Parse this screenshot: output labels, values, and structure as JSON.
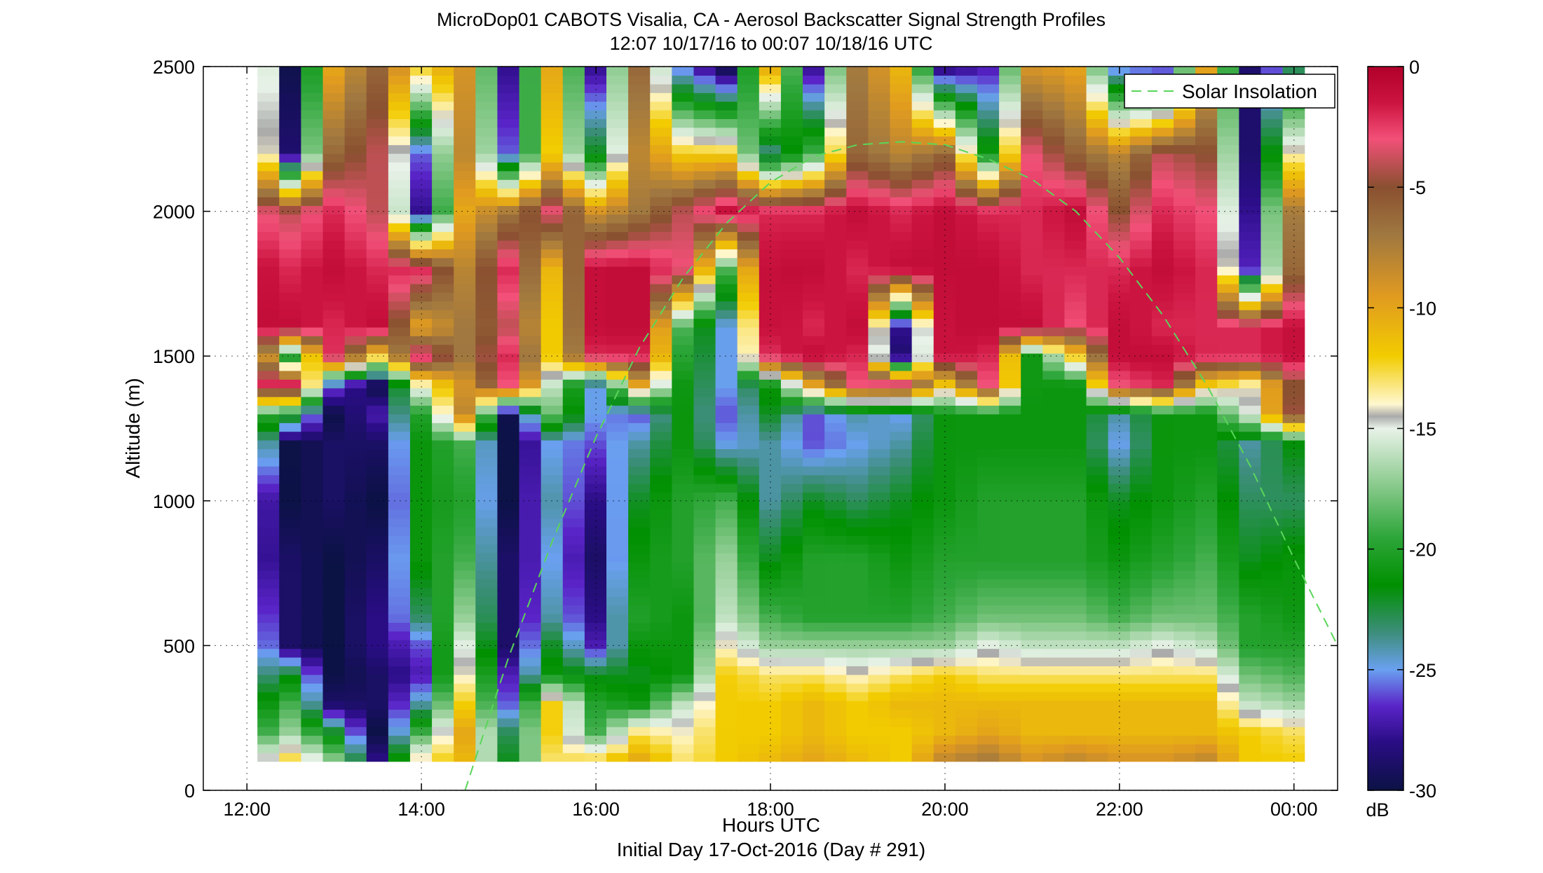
{
  "chart_data": {
    "type": "heatmap",
    "title": "MicroDop01 CABOTS Visalia, CA - Aerosol Backscatter Signal Strength Profiles",
    "subtitle": "12:07 10/17/16 to 00:07 10/18/16  UTC",
    "xlabel": "Hours UTC",
    "ylabel": "Altitude (m)",
    "footer": "Initial Day 17-Oct-2016 (Day # 291)",
    "x_ticks": [
      "12:00",
      "14:00",
      "16:00",
      "18:00",
      "20:00",
      "22:00",
      "00:00"
    ],
    "x_tick_hours": [
      12,
      14,
      16,
      18,
      20,
      22,
      24
    ],
    "xlim_hours": [
      11.5,
      24.5
    ],
    "y_ticks": [
      "0",
      "500",
      "1000",
      "1500",
      "2000",
      "2500"
    ],
    "y_tick_values": [
      0,
      500,
      1000,
      1500,
      2000,
      2500
    ],
    "ylim": [
      0,
      2500
    ],
    "data_x_range_hours": [
      12.12,
      24.12
    ],
    "data_y_range": [
      100,
      2500
    ],
    "colorbar": {
      "ticks": [
        "0",
        "-5",
        "-10",
        "-15",
        "-20",
        "-25",
        "-30"
      ],
      "tick_values": [
        0,
        -5,
        -10,
        -15,
        -20,
        -25,
        -30
      ],
      "range": [
        -30,
        0
      ],
      "unit": "dB",
      "colormap_stops": [
        [
          -30,
          "#0b1244"
        ],
        [
          -28,
          "#2a0d85"
        ],
        [
          -26.5,
          "#5a24c8"
        ],
        [
          -25,
          "#6aa0f0"
        ],
        [
          -23.5,
          "#3e8e7e"
        ],
        [
          -21.5,
          "#009000"
        ],
        [
          -19.5,
          "#2ea63a"
        ],
        [
          -17,
          "#98d09a"
        ],
        [
          -15,
          "#e8f2e8"
        ],
        [
          -14.5,
          "#aaaaaa"
        ],
        [
          -14,
          "#fff7d0"
        ],
        [
          -12,
          "#f2cc00"
        ],
        [
          -9.5,
          "#e09a20"
        ],
        [
          -7,
          "#a07840"
        ],
        [
          -5,
          "#8a5030"
        ],
        [
          -3,
          "#f25078"
        ],
        [
          -1.5,
          "#cc1440"
        ],
        [
          0,
          "#b0002a"
        ]
      ]
    },
    "grid_altitude_m": [
      2500,
      2200,
      2000,
      1800,
      1600,
      1500,
      1400,
      1300,
      1200,
      1000,
      800,
      600,
      500,
      400,
      300,
      200,
      100
    ],
    "grid_hours_utc": [
      12.12,
      12.5,
      13,
      13.5,
      14,
      14.5,
      15,
      15.5,
      16,
      16.5,
      17,
      17.5,
      18,
      18.5,
      19,
      19.5,
      20,
      20.5,
      21,
      21.5,
      22,
      22.5,
      23,
      23.5,
      24.12
    ],
    "values_db": [
      [
        -8,
        -30,
        -10,
        -6,
        -12,
        -9,
        -28,
        -10,
        -28,
        -6,
        -26,
        -30,
        -10,
        -28,
        -7,
        -11,
        -29,
        -27,
        -9,
        -10,
        -26,
        -27,
        -10,
        -29,
        -22
      ],
      [
        -7,
        -29,
        -6,
        -4,
        -26,
        -8,
        -26,
        -12,
        -22,
        -8,
        -12,
        -12,
        -24,
        -19,
        -6,
        -8,
        -6,
        -21,
        -3,
        -6,
        -8,
        -4,
        -5,
        -29,
        -10
      ],
      [
        -3,
        -4,
        -2,
        -4,
        -28,
        -10,
        -7,
        -3,
        -9,
        -7,
        -4,
        -1,
        -2,
        -2,
        -1,
        -2,
        -1,
        -2,
        -2,
        -1,
        -5,
        -2,
        -3,
        -28,
        -2
      ],
      [
        -1,
        -2,
        -1,
        -2,
        -2,
        -8,
        -2,
        -11,
        -1,
        -1,
        -3,
        -19,
        -1,
        -1,
        -2,
        -1,
        -1,
        -1,
        -2,
        -2,
        -2,
        -1,
        -2,
        -27,
        -1
      ],
      [
        -1,
        -1,
        -2,
        -1,
        -10,
        -7,
        -4,
        -12,
        -1,
        -1,
        -19,
        -25,
        -1,
        -2,
        -1,
        -28,
        -1,
        -1,
        -1,
        -3,
        -1,
        -2,
        -2,
        -2,
        -1
      ],
      [
        -3,
        -21,
        -2,
        -12,
        -2,
        -7,
        -2,
        -12,
        -2,
        -2,
        -20,
        -25,
        -2,
        -1,
        -2,
        -29,
        -1,
        -2,
        -21,
        -12,
        -1,
        -1,
        -2,
        -2,
        -1
      ],
      [
        -2,
        -1,
        -26,
        -30,
        -14,
        -9,
        -3,
        -16,
        -25,
        -10,
        -21,
        -25,
        -21,
        -10,
        -3,
        -2,
        -12,
        -3,
        -21,
        -21,
        -3,
        -2,
        -12,
        -14,
        -3
      ],
      [
        -19,
        -21,
        -30,
        -27,
        -20,
        -8,
        -30,
        -18,
        -25,
        -26,
        -21,
        -26,
        -22,
        -26,
        -24,
        -25,
        -21,
        -21,
        -21,
        -21,
        -24,
        -21,
        -21,
        -15,
        -2
      ],
      [
        -21,
        -30,
        -29,
        -29,
        -21,
        -19,
        -30,
        -25,
        -26,
        -24,
        -21,
        -25,
        -24,
        -26,
        -25,
        -24,
        -21,
        -21,
        -21,
        -21,
        -25,
        -21,
        -21,
        -24,
        -21
      ],
      [
        -26,
        -30,
        -29,
        -30,
        -21,
        -20,
        -30,
        -24,
        -28,
        -22,
        -20,
        -19,
        -24,
        -22,
        -23,
        -22,
        -21,
        -20,
        -20,
        -20,
        -22,
        -21,
        -20,
        -23,
        -23
      ],
      [
        -27,
        -29,
        -30,
        -29,
        -21,
        -19,
        -29,
        -25,
        -29,
        -21,
        -20,
        -17,
        -22,
        -20,
        -20,
        -21,
        -20,
        -20,
        -20,
        -20,
        -21,
        -20,
        -19,
        -22,
        -21
      ],
      [
        -25,
        -29,
        -30,
        -28,
        -23,
        -17,
        -29,
        -24,
        -28,
        -20,
        -21,
        -16,
        -19,
        -20,
        -20,
        -20,
        -19,
        -18,
        -18,
        -18,
        -19,
        -18,
        -18,
        -20,
        -21
      ],
      [
        -24,
        -29,
        -30,
        -28,
        -26,
        -15,
        -29,
        -22,
        -27,
        -21,
        -21,
        -14,
        -17,
        -17,
        -17,
        -17,
        -17,
        -15,
        -16,
        -16,
        -16,
        -15,
        -16,
        -20,
        -20
      ],
      [
        -24,
        -22,
        -30,
        -29,
        -27,
        -14,
        -27,
        -21,
        -22,
        -22,
        -21,
        -12,
        -13,
        -13,
        -14,
        -13,
        -12,
        -13,
        -13,
        -13,
        -13,
        -13,
        -13,
        -18,
        -19
      ],
      [
        -22,
        -19,
        -29,
        -29,
        -24,
        -12,
        -26,
        -12,
        -20,
        -21,
        -16,
        -12,
        -12,
        -11,
        -12,
        -11,
        -11,
        -11,
        -11,
        -11,
        -11,
        -11,
        -11,
        -16,
        -17
      ],
      [
        -20,
        -17,
        -22,
        -30,
        -19,
        -10,
        -23,
        -12,
        -19,
        -13,
        -14,
        -12,
        -12,
        -11,
        -12,
        -12,
        -11,
        -10,
        -11,
        -11,
        -11,
        -11,
        -11,
        -12,
        -13
      ],
      [
        -15,
        -12,
        -17,
        -28,
        -13,
        -11,
        -22,
        -13,
        -12,
        -10,
        -13,
        -12,
        -11,
        -10,
        -11,
        -12,
        -8,
        -7,
        -9,
        -8,
        -9,
        -9,
        -8,
        -12,
        -12
      ]
    ]
  },
  "legend": {
    "entries": [
      {
        "label": "Solar Insolation",
        "color": "#5ad65a",
        "style": "dashed"
      }
    ],
    "placement": "top-right"
  },
  "solar_insolation_curve": {
    "hours_utc": [
      14.5,
      15.0,
      15.5,
      16.0,
      16.5,
      17.0,
      17.5,
      18.0,
      18.5,
      19.0,
      19.5,
      20.0,
      20.5,
      21.0,
      21.5,
      22.0,
      22.5,
      23.0,
      23.5,
      24.0,
      24.5
    ],
    "altitude_equiv_m": [
      0,
      460,
      860,
      1220,
      1530,
      1770,
      1960,
      2100,
      2190,
      2230,
      2240,
      2230,
      2180,
      2110,
      2000,
      1840,
      1640,
      1400,
      1120,
      800,
      500
    ]
  }
}
